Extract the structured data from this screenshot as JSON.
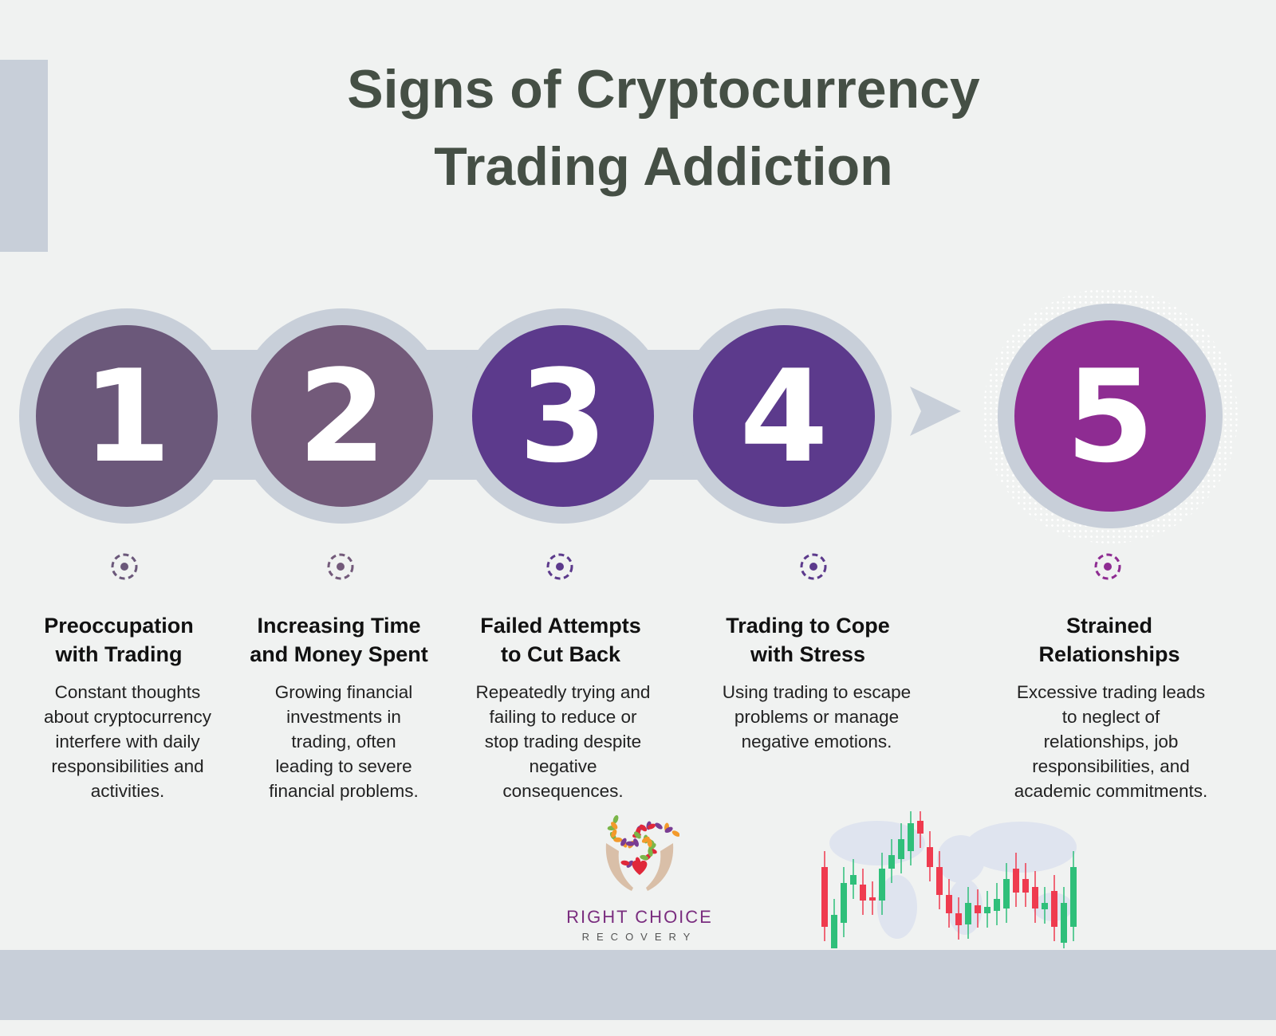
{
  "title": {
    "line1": "Signs of Cryptocurrency",
    "line2": "Trading Addiction"
  },
  "colors": {
    "background": "#f0f2f1",
    "ring": "#c8cfd9",
    "title": "#454f45",
    "bullish": "#2fbf7a",
    "bearish": "#ef3b4f"
  },
  "steps": [
    {
      "number": "1",
      "color": "#6b587a",
      "heading1": "Preoccupation",
      "heading2": "with Trading",
      "lines": [
        "Constant thoughts",
        "about cryptocurrency",
        "interfere with daily",
        "responsibilities and",
        "activities."
      ]
    },
    {
      "number": "2",
      "color": "#735a7a",
      "heading1": "Increasing Time",
      "heading2": "and Money Spent",
      "lines": [
        "Growing financial",
        "investments in",
        "trading, often",
        "leading to severe",
        "financial problems."
      ]
    },
    {
      "number": "3",
      "color": "#5c3a8c",
      "heading1": "Failed Attempts",
      "heading2": "to Cut Back",
      "lines": [
        "Repeatedly trying and",
        "failing to reduce or",
        "stop trading despite",
        "negative",
        "consequences."
      ]
    },
    {
      "number": "4",
      "color": "#5c3a8c",
      "heading1": "Trading to Cope",
      "heading2": "with Stress",
      "lines": [
        "Using trading to escape",
        "problems or manage",
        "negative emotions."
      ]
    },
    {
      "number": "5",
      "color": "#8e2c92",
      "heading1": "Strained",
      "heading2": "Relationships",
      "lines": [
        "Excessive trading leads",
        "to neglect of",
        "relationships, job",
        "responsibilities, and",
        "academic commitments."
      ]
    }
  ],
  "logo": {
    "name": "RIGHT CHOICE",
    "tagline": "RECOVERY",
    "icon": "tree-hands-heart-logo"
  },
  "illustration": {
    "icon": "candlestick-world-map"
  }
}
